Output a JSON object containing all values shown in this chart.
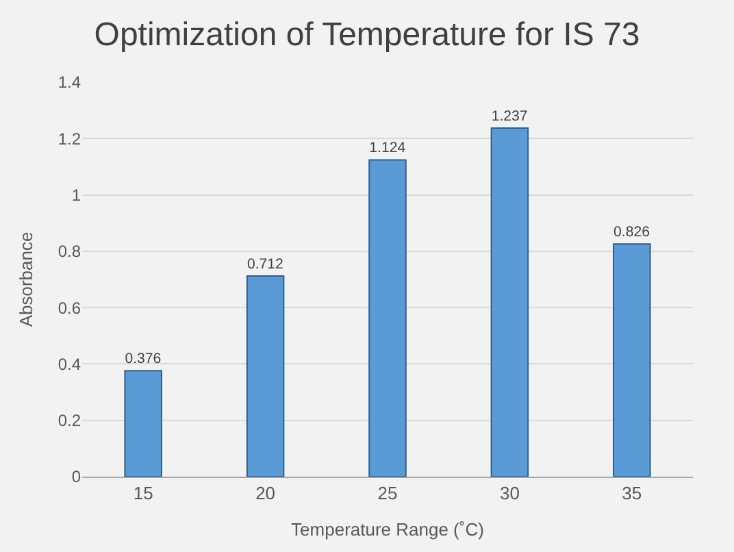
{
  "chart_data": {
    "type": "bar",
    "title": "Optimization of Temperature for IS 73",
    "xlabel": "Temperature Range (˚C)",
    "ylabel": "Absorbance",
    "categories": [
      "15",
      "20",
      "25",
      "30",
      "35"
    ],
    "values": [
      0.376,
      0.712,
      1.124,
      1.237,
      0.826
    ],
    "color": "#5b9bd5",
    "ylim": [
      0,
      1.4
    ],
    "yticks": [
      0,
      0.2,
      0.4,
      0.6,
      0.8,
      1,
      1.2,
      1.4
    ],
    "grid": "y",
    "data_labels": true
  }
}
